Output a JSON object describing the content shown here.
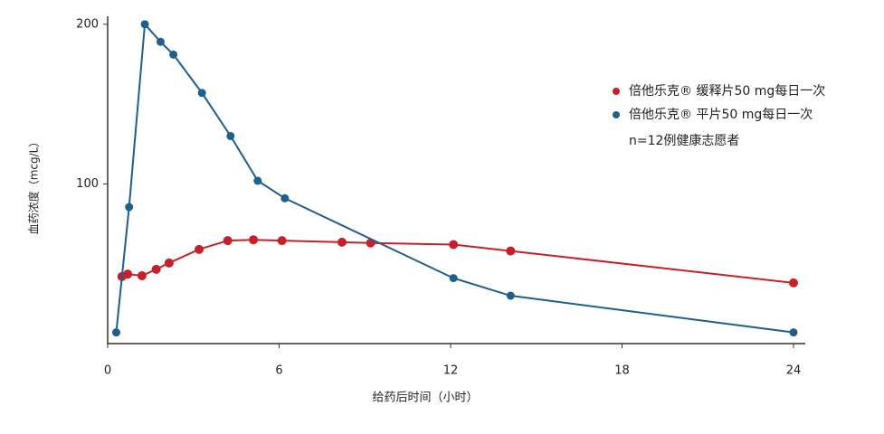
{
  "chart_data": {
    "type": "line",
    "xlabel": "给药后时间（小时）",
    "ylabel": "血药浓度（mcg/L）",
    "annotation": "n=12例健康志愿者",
    "xlim": [
      0,
      24
    ],
    "xticks": [
      0,
      6,
      12,
      18,
      24
    ],
    "ylim": [
      0,
      205
    ],
    "yticks": [
      100,
      200
    ],
    "series": [
      {
        "name": "倍他乐克® 缓释片50 mg每日一次",
        "color": "#c8202a",
        "x": [
          0.5,
          0.7,
          1.2,
          1.7,
          2.15,
          3.2,
          4.2,
          5.1,
          6.1,
          8.2,
          9.2,
          12.1,
          14.1,
          24
        ],
        "values": [
          42,
          43.5,
          42.5,
          46.5,
          50.5,
          59,
          64.5,
          65,
          64.5,
          63.5,
          63,
          62,
          58,
          38
        ]
      },
      {
        "name": "倍他乐克® 平片50 mg每日一次",
        "color": "#1f5f8b",
        "x": [
          0.3,
          0.75,
          1.3,
          1.85,
          2.3,
          3.3,
          4.3,
          5.25,
          6.2,
          12.1,
          14.1,
          24
        ],
        "values": [
          7,
          85.5,
          200,
          189,
          181,
          157,
          130,
          102,
          91,
          41,
          30,
          7
        ]
      }
    ]
  }
}
